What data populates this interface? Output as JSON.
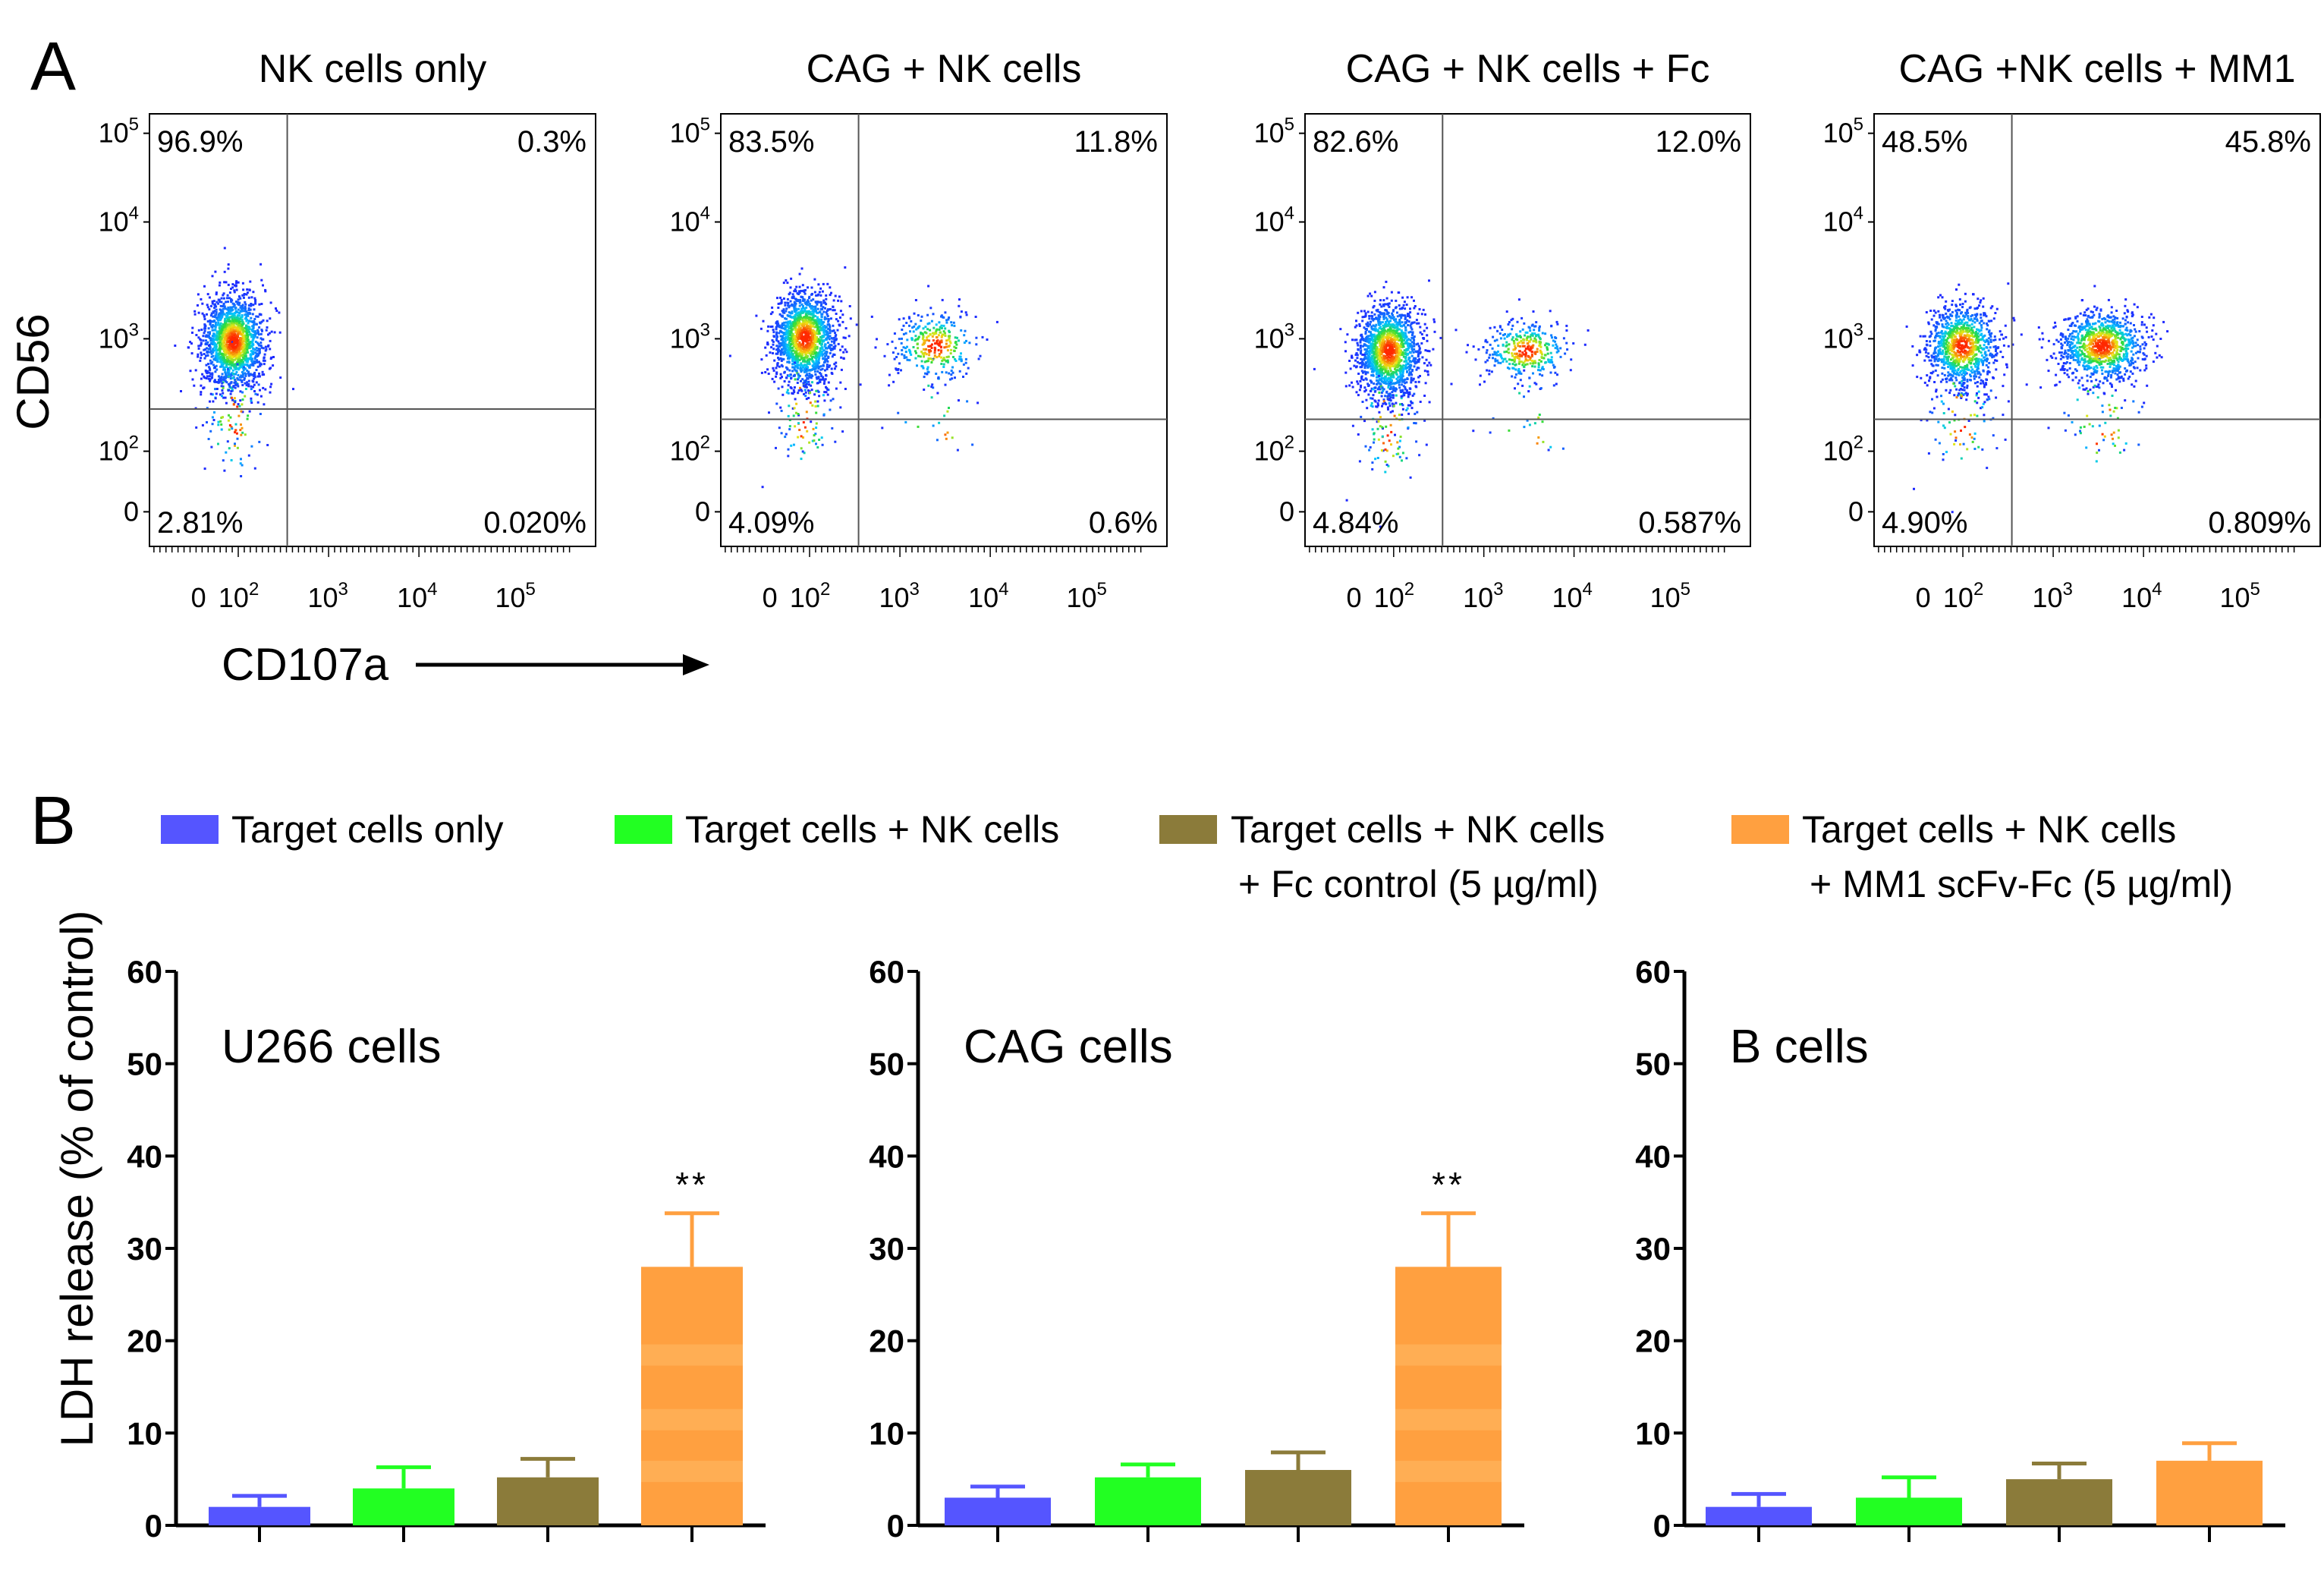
{
  "figure": {
    "panel_a_label": "A",
    "panel_b_label": "B",
    "flow_y_label": "CD56",
    "flow_x_label": "CD107a",
    "bar_y_label": "LDH release (% of control)"
  },
  "chart_data": [
    {
      "type": "scatter",
      "title": "NK cells only",
      "xlabel": "CD107a",
      "ylabel": "CD56",
      "x_ticks": [
        "0",
        "10^2",
        "10^3",
        "10^4",
        "10^5"
      ],
      "y_ticks": [
        "0",
        "10^2",
        "10^3",
        "10^4",
        "10^5"
      ],
      "quadrant_percentages": {
        "upper_left": "96.9%",
        "upper_right": "0.3%",
        "lower_left": "2.81%",
        "lower_right": "0.020%"
      },
      "populations": [
        {
          "cx": 50,
          "cy": 1100,
          "spread_x": 0.35,
          "spread_y": 0.45,
          "n": 1700
        }
      ],
      "gate_x": 350,
      "gate_y": 250
    },
    {
      "type": "scatter",
      "title": "CAG + NK cells",
      "xlabel": "CD107a",
      "ylabel": "CD56",
      "x_ticks": [
        "0",
        "10^2",
        "10^3",
        "10^4",
        "10^5"
      ],
      "y_ticks": [
        "0",
        "10^2",
        "10^3",
        "10^4",
        "10^5"
      ],
      "quadrant_percentages": {
        "upper_left": "83.5%",
        "upper_right": "11.8%",
        "lower_left": "4.09%",
        "lower_right": "0.6%"
      },
      "populations": [
        {
          "cx": 50,
          "cy": 1200,
          "spread_x": 0.35,
          "spread_y": 0.45,
          "n": 1600
        },
        {
          "cx": 2500,
          "cy": 1000,
          "spread_x": 0.5,
          "spread_y": 0.35,
          "n": 350
        }
      ],
      "gate_x": 350,
      "gate_y": 200
    },
    {
      "type": "scatter",
      "title": "CAG + NK cells + Fc",
      "xlabel": "CD107a",
      "ylabel": "CD56",
      "x_ticks": [
        "0",
        "10^2",
        "10^3",
        "10^4",
        "10^5"
      ],
      "y_ticks": [
        "0",
        "10^2",
        "10^3",
        "10^4",
        "10^5"
      ],
      "quadrant_percentages": {
        "upper_left": "82.6%",
        "upper_right": "12.0%",
        "lower_left": "4.84%",
        "lower_right": "0.587%"
      },
      "populations": [
        {
          "cx": 50,
          "cy": 900,
          "spread_x": 0.35,
          "spread_y": 0.45,
          "n": 1600
        },
        {
          "cx": 3000,
          "cy": 900,
          "spread_x": 0.5,
          "spread_y": 0.3,
          "n": 380
        }
      ],
      "gate_x": 350,
      "gate_y": 200
    },
    {
      "type": "scatter",
      "title": "CAG +NK cells + MM1",
      "xlabel": "CD107a",
      "ylabel": "CD56",
      "x_ticks": [
        "0",
        "10^2",
        "10^3",
        "10^4",
        "10^5"
      ],
      "y_ticks": [
        "0",
        "10^2",
        "10^3",
        "10^4",
        "10^5"
      ],
      "quadrant_percentages": {
        "upper_left": "48.5%",
        "upper_right": "45.8%",
        "lower_left": "4.90%",
        "lower_right": "0.809%"
      },
      "populations": [
        {
          "cx": 80,
          "cy": 1000,
          "spread_x": 0.4,
          "spread_y": 0.4,
          "n": 1100
        },
        {
          "cx": 3500,
          "cy": 1000,
          "spread_x": 0.5,
          "spread_y": 0.35,
          "n": 1050
        }
      ],
      "gate_x": 350,
      "gate_y": 200
    },
    {
      "type": "bar",
      "title": "U266 cells",
      "categories": [
        "Target cells only",
        "Target cells + NK cells",
        "Target cells + NK cells + Fc control (5 µg/ml)",
        "Target cells + NK cells + MM1 scFv-Fc (5 µg/ml)"
      ],
      "values": [
        2.0,
        4.0,
        5.2,
        28.0
      ],
      "errors": [
        1.2,
        2.3,
        2.0,
        5.8
      ],
      "significance": [
        "",
        "",
        "",
        "**"
      ],
      "ylabel": "LDH release (% of control)",
      "ylim": [
        0,
        60
      ],
      "yticks": [
        0,
        10,
        20,
        30,
        40,
        50,
        60
      ]
    },
    {
      "type": "bar",
      "title": "CAG cells",
      "categories": [
        "Target cells only",
        "Target cells + NK cells",
        "Target cells + NK cells + Fc control (5 µg/ml)",
        "Target cells + NK cells + MM1 scFv-Fc (5 µg/ml)"
      ],
      "values": [
        3.0,
        5.2,
        6.0,
        28.0
      ],
      "errors": [
        1.2,
        1.4,
        1.9,
        5.8
      ],
      "significance": [
        "",
        "",
        "",
        "**"
      ],
      "ylabel": "LDH release (% of control)",
      "ylim": [
        0,
        60
      ],
      "yticks": [
        0,
        10,
        20,
        30,
        40,
        50,
        60
      ]
    },
    {
      "type": "bar",
      "title": "B cells",
      "categories": [
        "Target cells only",
        "Target cells + NK cells",
        "Target cells + NK cells + Fc control (5 µg/ml)",
        "Target cells + NK cells + MM1 scFv-Fc (5 µg/ml)"
      ],
      "values": [
        2.0,
        3.0,
        5.0,
        7.0
      ],
      "errors": [
        1.4,
        2.2,
        1.7,
        1.9
      ],
      "significance": [
        "",
        "",
        "",
        ""
      ],
      "ylabel": "LDH release (% of control)",
      "ylim": [
        0,
        60
      ],
      "yticks": [
        0,
        10,
        20,
        30,
        40,
        50,
        60
      ]
    }
  ],
  "legend": [
    {
      "line1": "Target cells only",
      "line2": "",
      "color": "#5555ff"
    },
    {
      "line1": "Target cells + NK cells",
      "line2": "",
      "color": "#22ff22"
    },
    {
      "line1": "Target cells + NK cells",
      "line2": "+ Fc control (5 µg/ml)",
      "color": "#8b7b3a"
    },
    {
      "line1": "Target cells + NK cells",
      "line2": "+ MM1 scFv-Fc (5 µg/ml)",
      "color": "#ffa040"
    }
  ]
}
